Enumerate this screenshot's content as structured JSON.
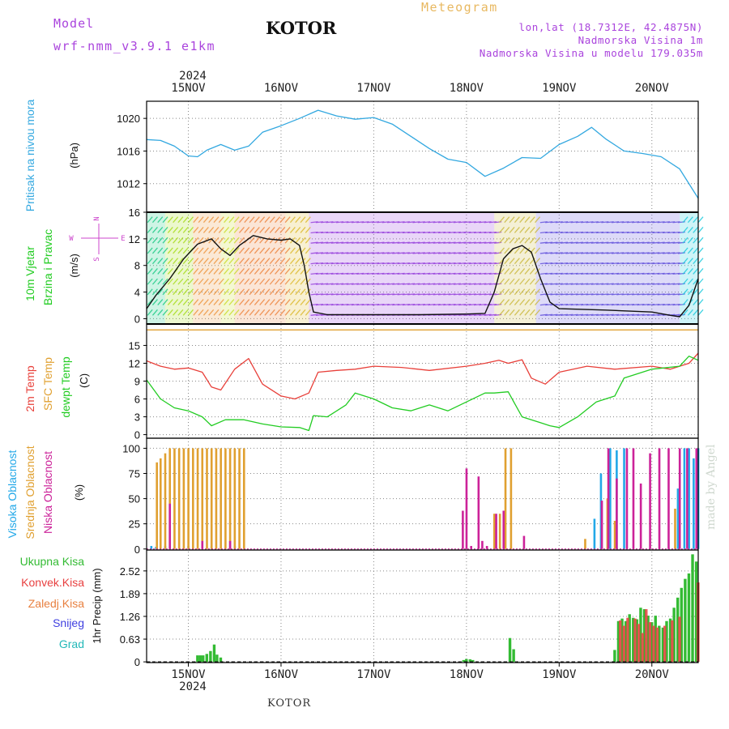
{
  "header": {
    "model_label": "Model",
    "model_name": "wrf-nmm_v3.9.1 e1km",
    "station": "KOTOR",
    "meteogram_label": "Meteogram",
    "lonlat": "lon,lat (18.7312E, 42.4875N)",
    "elevation": "Nadmorska Visina 1m",
    "model_elevation": "Nadmorska Visina u modelu 179.035m",
    "watermark": "made by Angel",
    "footer_station": "KOTOR"
  },
  "colors": {
    "pressure": "#33a8e0",
    "temp2m": "#e8403a",
    "sfc_temp": "#e0a030",
    "dewpoint": "#22cc22",
    "cloud_high": "#22a8e8",
    "cloud_mid": "#e0a030",
    "cloud_low": "#cc2299",
    "precip_total": "#33bb33",
    "precip_conv": "#e84040",
    "precip_snow": "#4040e0",
    "precip_grad": "#22b8b8",
    "purple_text": "#aa44dd",
    "orange_text": "#e8b860"
  },
  "chart_data": [
    {
      "type": "line",
      "panel": "pressure",
      "ylabel_name": "Pritisak na nivou mora",
      "ylabel_unit": "(hPa)",
      "yticks": [
        "1020",
        "1016",
        "1012"
      ],
      "ylim": [
        1008.5,
        1022.1
      ],
      "x_day_ticks": [
        "15NOV",
        "16NOV",
        "17NOV",
        "18NOV",
        "19NOV",
        "20NOV"
      ],
      "year": "2024",
      "xlim_days": [
        14.55,
        20.5
      ],
      "grid": true,
      "series": [
        {
          "key": "pressure",
          "x": [
            14.55,
            14.7,
            14.85,
            15.0,
            15.1,
            15.2,
            15.35,
            15.5,
            15.65,
            15.8,
            16.0,
            16.2,
            16.4,
            16.6,
            16.8,
            17.0,
            17.2,
            17.4,
            17.6,
            17.8,
            18.0,
            18.2,
            18.4,
            18.6,
            18.8,
            19.0,
            19.2,
            19.35,
            19.5,
            19.7,
            19.9,
            20.1,
            20.3,
            20.5
          ],
          "y": [
            1017.4,
            1017.3,
            1016.6,
            1015.4,
            1015.3,
            1016.1,
            1016.8,
            1016.1,
            1016.6,
            1018.3,
            1019.1,
            1020.0,
            1021.0,
            1020.3,
            1019.9,
            1020.1,
            1019.3,
            1017.8,
            1016.3,
            1015.0,
            1014.6,
            1012.9,
            1013.9,
            1015.2,
            1015.1,
            1016.8,
            1017.8,
            1018.9,
            1017.5,
            1016.0,
            1015.7,
            1015.3,
            1013.8,
            1010.2
          ]
        }
      ]
    },
    {
      "type": "line",
      "panel": "wind",
      "ylabel_name": "10m Vjetar",
      "ylabel_name2": "Brzina i Pravac",
      "ylabel_unit": "(m/s)",
      "compass": [
        "N",
        "E",
        "S",
        "W"
      ],
      "yticks": [
        "16",
        "12",
        "8",
        "4",
        "0"
      ],
      "ylim": [
        -0.8,
        16
      ],
      "grid": true,
      "series": [
        {
          "key": "wind_speed",
          "x": [
            14.55,
            14.65,
            14.8,
            14.95,
            15.1,
            15.25,
            15.35,
            15.45,
            15.55,
            15.7,
            15.85,
            16.0,
            16.1,
            16.2,
            16.25,
            16.3,
            16.35,
            16.5,
            17.0,
            17.5,
            18.0,
            18.2,
            18.3,
            18.4,
            18.5,
            18.6,
            18.7,
            18.8,
            18.9,
            19.0,
            19.5,
            20.0,
            20.2,
            20.3,
            20.4,
            20.5
          ],
          "y": [
            1.5,
            3.5,
            6.0,
            9.0,
            11.2,
            12.0,
            10.5,
            9.5,
            11.0,
            12.5,
            12.0,
            11.8,
            12.0,
            11.0,
            8.0,
            4.0,
            1.0,
            0.6,
            0.6,
            0.6,
            0.7,
            0.8,
            4.0,
            9.0,
            10.5,
            11.0,
            10.0,
            6.0,
            2.5,
            1.5,
            1.3,
            1.0,
            0.5,
            0.3,
            2.0,
            6.0
          ]
        }
      ]
    },
    {
      "type": "line",
      "panel": "temperature",
      "ylabel_names": [
        "2m Temp",
        "SFC Temp",
        "dewpt Temp"
      ],
      "ylabel_unit": "(C)",
      "yticks": [
        "15",
        "12",
        "9",
        "6",
        "3",
        "0"
      ],
      "ylim": [
        -0.6,
        18.6
      ],
      "grid": true,
      "series": [
        {
          "key": "temp2m",
          "x": [
            14.55,
            14.7,
            14.85,
            15.0,
            15.15,
            15.25,
            15.35,
            15.5,
            15.65,
            15.8,
            16.0,
            16.15,
            16.3,
            16.4,
            16.6,
            16.8,
            17.0,
            17.3,
            17.6,
            18.0,
            18.2,
            18.35,
            18.45,
            18.6,
            18.7,
            18.85,
            19.0,
            19.3,
            19.6,
            20.0,
            20.2,
            20.4,
            20.5
          ],
          "y": [
            12.4,
            11.5,
            11.0,
            11.2,
            10.5,
            8.0,
            7.5,
            11.0,
            12.8,
            8.5,
            6.5,
            6.0,
            7.0,
            10.5,
            10.8,
            11.0,
            11.5,
            11.3,
            10.8,
            11.5,
            12.0,
            12.5,
            12.0,
            12.6,
            9.5,
            8.5,
            10.5,
            11.5,
            11.0,
            11.5,
            11.0,
            12.0,
            13.7
          ]
        },
        {
          "key": "sfc_temp",
          "x": [
            14.55,
            20.5
          ],
          "y": [
            17.6,
            17.6
          ]
        },
        {
          "key": "dewpoint",
          "x": [
            14.55,
            14.7,
            14.85,
            15.0,
            15.15,
            15.25,
            15.4,
            15.6,
            15.8,
            16.0,
            16.2,
            16.3,
            16.35,
            16.5,
            16.7,
            16.8,
            17.0,
            17.2,
            17.4,
            17.6,
            17.8,
            18.0,
            18.2,
            18.3,
            18.45,
            18.6,
            18.8,
            18.9,
            19.0,
            19.2,
            19.4,
            19.6,
            19.7,
            20.0,
            20.3,
            20.4,
            20.5
          ],
          "y": [
            9.2,
            6.0,
            4.5,
            4.0,
            3.0,
            1.5,
            2.5,
            2.5,
            1.8,
            1.3,
            1.2,
            0.7,
            3.2,
            3.0,
            5.0,
            7.0,
            6.0,
            4.5,
            4.0,
            5.0,
            4.0,
            5.5,
            7.0,
            7.0,
            7.2,
            3.0,
            2.0,
            1.5,
            1.2,
            3.0,
            5.5,
            6.5,
            9.5,
            11.0,
            11.5,
            13.2,
            12.5
          ]
        }
      ]
    },
    {
      "type": "bar",
      "panel": "cloud",
      "ylabel_names": [
        "Visoka Oblacnost",
        "Srednja Oblacnost",
        "Niska Oblacnost"
      ],
      "ylabel_unit": "(%)",
      "yticks": [
        "100",
        "75",
        "50",
        "25",
        "0"
      ],
      "ylim": [
        -1,
        110
      ],
      "grid": true,
      "series": [
        {
          "key": "cloud_high",
          "x": [
            14.6,
            14.65,
            14.75,
            15.0,
            15.25,
            15.5,
            19.38,
            19.45,
            19.55,
            19.62,
            19.7,
            20.28,
            20.35,
            20.4,
            20.45,
            20.5
          ],
          "values": [
            3,
            2,
            3,
            3,
            3,
            3,
            30,
            75,
            100,
            98,
            100,
            60,
            100,
            100,
            90,
            100
          ]
        },
        {
          "key": "cloud_mid",
          "x": [
            14.66,
            14.7,
            14.75,
            14.8,
            14.85,
            14.9,
            14.95,
            15.0,
            15.05,
            15.1,
            15.15,
            15.2,
            15.25,
            15.3,
            15.35,
            15.4,
            15.45,
            15.5,
            15.55,
            15.6,
            18.3,
            18.36,
            18.42,
            18.48,
            19.28,
            19.52,
            19.6,
            20.25
          ],
          "values": [
            86,
            90,
            95,
            100,
            100,
            100,
            100,
            100,
            100,
            100,
            100,
            100,
            100,
            100,
            100,
            100,
            100,
            100,
            100,
            100,
            35,
            35,
            100,
            100,
            10,
            50,
            28,
            40
          ]
        },
        {
          "key": "cloud_low",
          "x": [
            14.8,
            15.15,
            15.45,
            17.96,
            18.0,
            18.05,
            18.13,
            18.17,
            18.22,
            18.32,
            18.4,
            18.62,
            19.46,
            19.53,
            19.62,
            19.73,
            19.8,
            19.88,
            19.98,
            20.08,
            20.18,
            20.3,
            20.38,
            20.48
          ],
          "values": [
            45,
            8,
            8,
            38,
            80,
            3,
            72,
            8,
            3,
            35,
            38,
            13,
            48,
            100,
            70,
            100,
            100,
            65,
            95,
            100,
            100,
            100,
            100,
            100
          ]
        }
      ]
    },
    {
      "type": "bar",
      "panel": "precip",
      "ylabel_names": [
        "Ukupna Kisa",
        "Konvek.Kisa",
        "Zaledj.Kisa",
        "Snijeg",
        "Grad"
      ],
      "ylabel_unit": "1hr Precip (mm)",
      "yticks": [
        "2.52",
        "1.89",
        "1.26",
        "0.63",
        "0"
      ],
      "ylim": [
        -0.02,
        3.1
      ],
      "grid": true,
      "series": [
        {
          "key": "precip_total",
          "x": [
            15.1,
            15.13,
            15.16,
            15.2,
            15.24,
            15.28,
            15.31,
            15.35,
            17.97,
            18.0,
            18.04,
            18.07,
            18.47,
            18.51,
            19.6,
            19.64,
            19.68,
            19.72,
            19.76,
            19.8,
            19.84,
            19.88,
            19.92,
            19.96,
            20.0,
            20.04,
            20.08,
            20.12,
            20.16,
            20.2,
            20.24,
            20.28,
            20.32,
            20.36,
            20.4,
            20.44,
            20.48
          ],
          "values": [
            0.18,
            0.18,
            0.18,
            0.22,
            0.3,
            0.48,
            0.2,
            0.12,
            0.05,
            0.08,
            0.07,
            0.05,
            0.66,
            0.35,
            0.33,
            1.13,
            1.2,
            1.13,
            1.32,
            1.22,
            1.18,
            1.5,
            1.46,
            1.28,
            1.1,
            1.28,
            1.0,
            0.95,
            1.13,
            1.2,
            1.5,
            1.78,
            2.05,
            2.3,
            2.45,
            2.98,
            2.78
          ]
        },
        {
          "key": "precip_conv",
          "x": [
            19.66,
            19.7,
            19.74,
            19.82,
            19.86,
            19.9,
            19.94,
            19.98,
            20.02,
            20.06,
            20.14,
            20.22,
            20.3,
            20.5
          ],
          "values": [
            1.15,
            1.0,
            1.22,
            1.2,
            1.05,
            0.8,
            1.46,
            1.1,
            1.0,
            0.95,
            1.0,
            1.15,
            1.25,
            2.2
          ]
        }
      ]
    }
  ]
}
